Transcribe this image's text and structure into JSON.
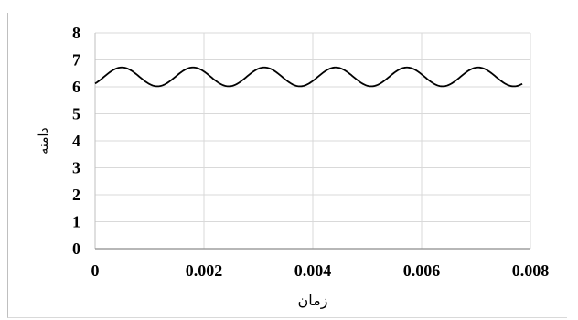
{
  "header_text": "",
  "chart_data": {
    "type": "line",
    "title": "",
    "xlabel": "زمان",
    "ylabel": "دامنه",
    "xlim": [
      0,
      0.008
    ],
    "ylim": [
      0,
      8
    ],
    "x_ticks": [
      "0",
      "0.002",
      "0.004",
      "0.006",
      "0.008"
    ],
    "y_ticks": [
      "0",
      "1",
      "2",
      "3",
      "4",
      "5",
      "6",
      "7",
      "8"
    ],
    "grid": true,
    "series": [
      {
        "color": "#000000",
        "x_range": [
          0,
          0.00785
        ],
        "waveform": "sine",
        "offset": 6.37,
        "amplitude": 0.35,
        "period": 0.00131,
        "peak_at": 0.00049
      }
    ]
  }
}
